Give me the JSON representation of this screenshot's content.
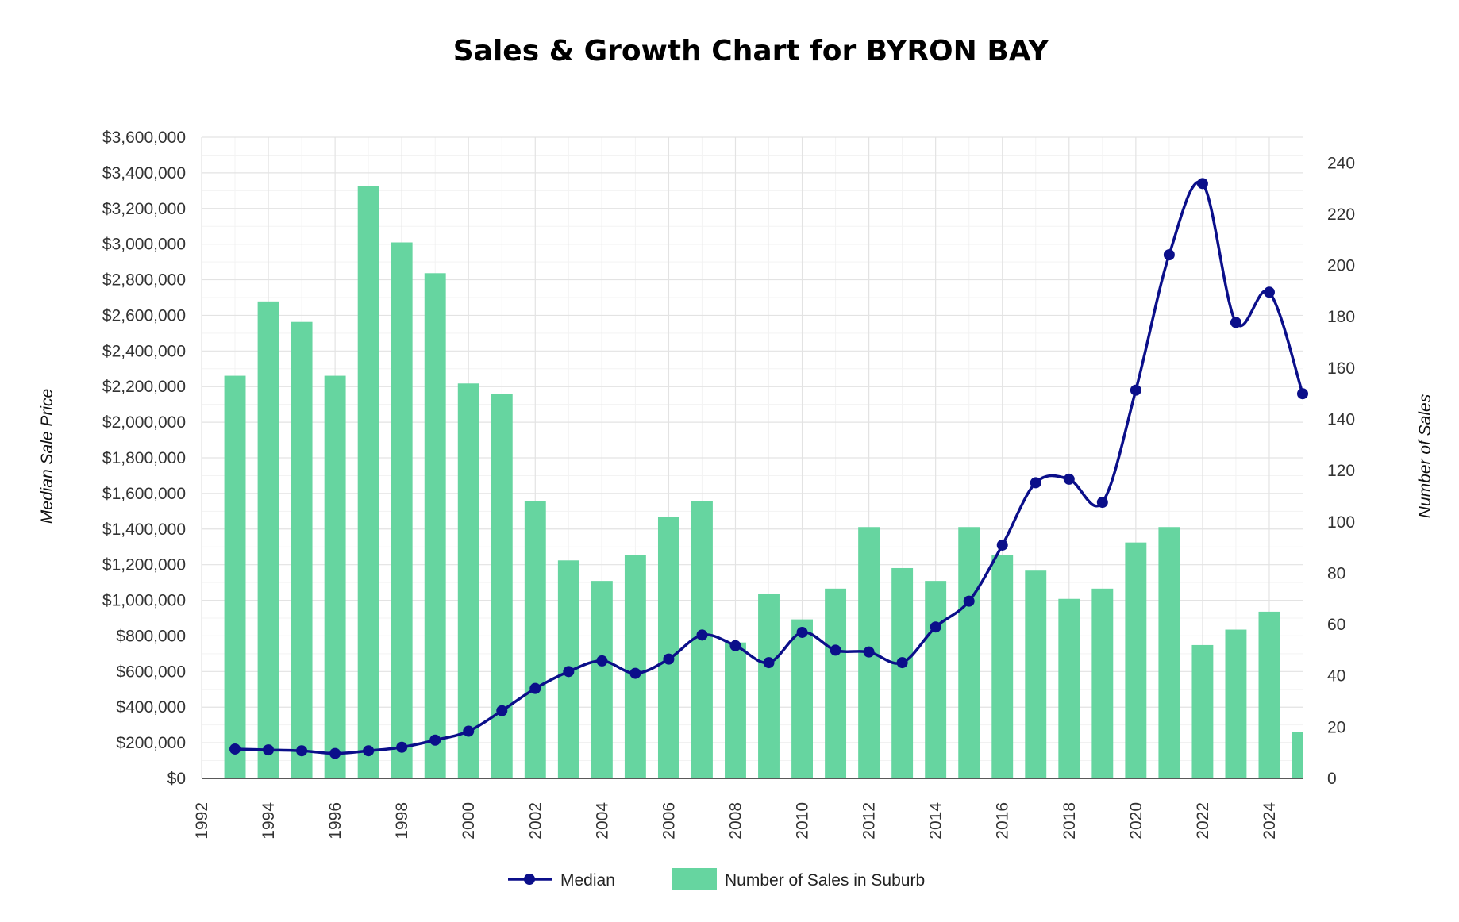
{
  "chart_data": {
    "type": "bar",
    "title": "Sales & Growth Chart for BYRON BAY",
    "y_left_label": "Median Sale Price",
    "y_right_label": "Number of Sales",
    "x_ticks": [
      "1992",
      "1994",
      "1996",
      "1998",
      "2000",
      "2002",
      "2004",
      "2006",
      "2008",
      "2010",
      "2012",
      "2014",
      "2016",
      "2018",
      "2020",
      "2022",
      "2024"
    ],
    "y_left_ticks": [
      "$0",
      "$200,000",
      "$400,000",
      "$600,000",
      "$800,000",
      "$1,000,000",
      "$1,200,000",
      "$1,400,000",
      "$1,600,000",
      "$1,800,000",
      "$2,000,000",
      "$2,200,000",
      "$2,400,000",
      "$2,600,000",
      "$2,800,000",
      "$3,000,000",
      "$3,200,000",
      "$3,400,000",
      "$3,600,000"
    ],
    "y_right_ticks": [
      "0",
      "20",
      "40",
      "60",
      "80",
      "100",
      "120",
      "140",
      "160",
      "180",
      "200",
      "220",
      "240"
    ],
    "xlim": [
      1992,
      2025
    ],
    "ylim_left": [
      0,
      3600000
    ],
    "ylim_right": [
      0,
      250
    ],
    "grid": true,
    "legend_position": "bottom",
    "colors": {
      "median": "#0b0f8a",
      "sales": "#66d5a0"
    },
    "legend": {
      "median": "Median",
      "sales": "Number of Sales in Suburb"
    },
    "x": [
      1993,
      1994,
      1995,
      1996,
      1997,
      1998,
      1999,
      2000,
      2001,
      2002,
      2003,
      2004,
      2005,
      2006,
      2007,
      2008,
      2009,
      2010,
      2011,
      2012,
      2013,
      2014,
      2015,
      2016,
      2017,
      2018,
      2019,
      2020,
      2021,
      2022,
      2023,
      2024,
      2025
    ],
    "series": [
      {
        "name": "Median",
        "type": "line",
        "axis": "left",
        "values": [
          165000,
          160000,
          155000,
          140000,
          155000,
          175000,
          215000,
          265000,
          380000,
          505000,
          600000,
          660000,
          590000,
          670000,
          805000,
          745000,
          650000,
          820000,
          720000,
          710000,
          650000,
          850000,
          995000,
          1310000,
          1660000,
          1680000,
          1550000,
          2180000,
          2940000,
          3340000,
          2560000,
          2730000,
          2160000
        ]
      },
      {
        "name": "Number of Sales in Suburb",
        "type": "bar",
        "axis": "right",
        "values": [
          157,
          186,
          178,
          157,
          231,
          209,
          197,
          154,
          150,
          108,
          85,
          77,
          87,
          102,
          108,
          53,
          72,
          62,
          74,
          98,
          82,
          77,
          98,
          87,
          81,
          70,
          74,
          92,
          98,
          52,
          58,
          65,
          18
        ]
      }
    ]
  }
}
